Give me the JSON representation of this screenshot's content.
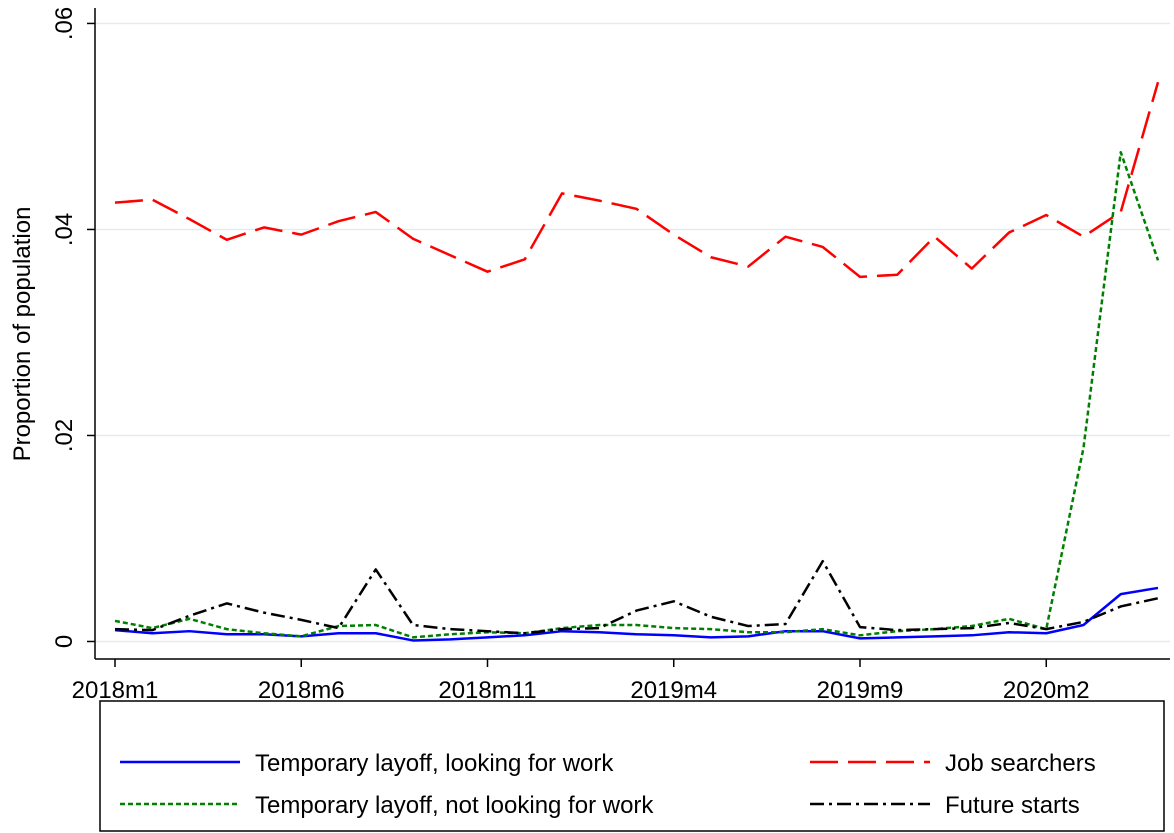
{
  "chart_data": {
    "type": "line",
    "y_label": "Proportion of population",
    "categories": [
      "2018m1",
      null,
      null,
      null,
      null,
      "2018m6",
      null,
      null,
      null,
      null,
      "2018m11",
      null,
      null,
      null,
      null,
      "2019m4",
      null,
      null,
      null,
      null,
      "2019m9",
      null,
      null,
      null,
      null,
      "2020m2",
      null,
      null,
      null
    ],
    "series": [
      {
        "name": "Temporary layoff, looking for work",
        "color": "#0000ff",
        "dash": "none",
        "values": [
          0.0011,
          0.0008,
          0.001,
          0.0007,
          0.0007,
          0.0005,
          0.0008,
          0.0008,
          0.0001,
          0.0002,
          0.0004,
          0.0006,
          0.001,
          0.0009,
          0.0007,
          0.0006,
          0.0004,
          0.0005,
          0.001,
          0.001,
          0.0003,
          0.0004,
          0.0005,
          0.0006,
          0.0009,
          0.0008,
          0.0016,
          0.0046,
          0.0052
        ]
      },
      {
        "name": "Job searchers",
        "color": "#ff0000",
        "dash": "28 10",
        "values": [
          0.0426,
          0.0429,
          0.041,
          0.039,
          0.0402,
          0.0395,
          0.0408,
          0.0417,
          0.0391,
          0.0375,
          0.0359,
          0.0371,
          0.0435,
          0.0428,
          0.042,
          0.0395,
          0.0373,
          0.0364,
          0.0393,
          0.0383,
          0.0354,
          0.0356,
          0.0393,
          0.0362,
          0.0397,
          0.0414,
          0.0393,
          0.0417,
          0.0543
        ]
      },
      {
        "name": "Temporary layoff, not looking for work",
        "color": "#008000",
        "dash": "5 3",
        "values": [
          0.002,
          0.0013,
          0.0022,
          0.0012,
          0.0008,
          0.0005,
          0.0015,
          0.0016,
          0.0004,
          0.0007,
          0.0009,
          0.0008,
          0.0013,
          0.0016,
          0.0016,
          0.0013,
          0.0012,
          0.0009,
          0.0009,
          0.0012,
          0.0006,
          0.001,
          0.0012,
          0.0015,
          0.0022,
          0.0012,
          0.0188,
          0.0475,
          0.037
        ]
      },
      {
        "name": "Future starts",
        "color": "#000000",
        "dash": "14 5 3 5",
        "values": [
          0.0012,
          0.0011,
          0.0025,
          0.0037,
          0.0028,
          0.0021,
          0.0013,
          0.007,
          0.0016,
          0.0012,
          0.001,
          0.0008,
          0.0012,
          0.0013,
          0.003,
          0.0039,
          0.0024,
          0.0015,
          0.0017,
          0.0078,
          0.0014,
          0.0011,
          0.0012,
          0.0013,
          0.0018,
          0.0012,
          0.0019,
          0.0034,
          0.0042
        ]
      }
    ],
    "ylim": [
      -0.0017,
      0.0615
    ],
    "yticks": [
      0,
      {
        "value": 0.02,
        "label": ".02"
      },
      {
        "value": 0.04,
        "label": ".04"
      },
      {
        "value": 0.06,
        "label": ".06"
      }
    ],
    "grid": true,
    "legend": "bottom"
  }
}
